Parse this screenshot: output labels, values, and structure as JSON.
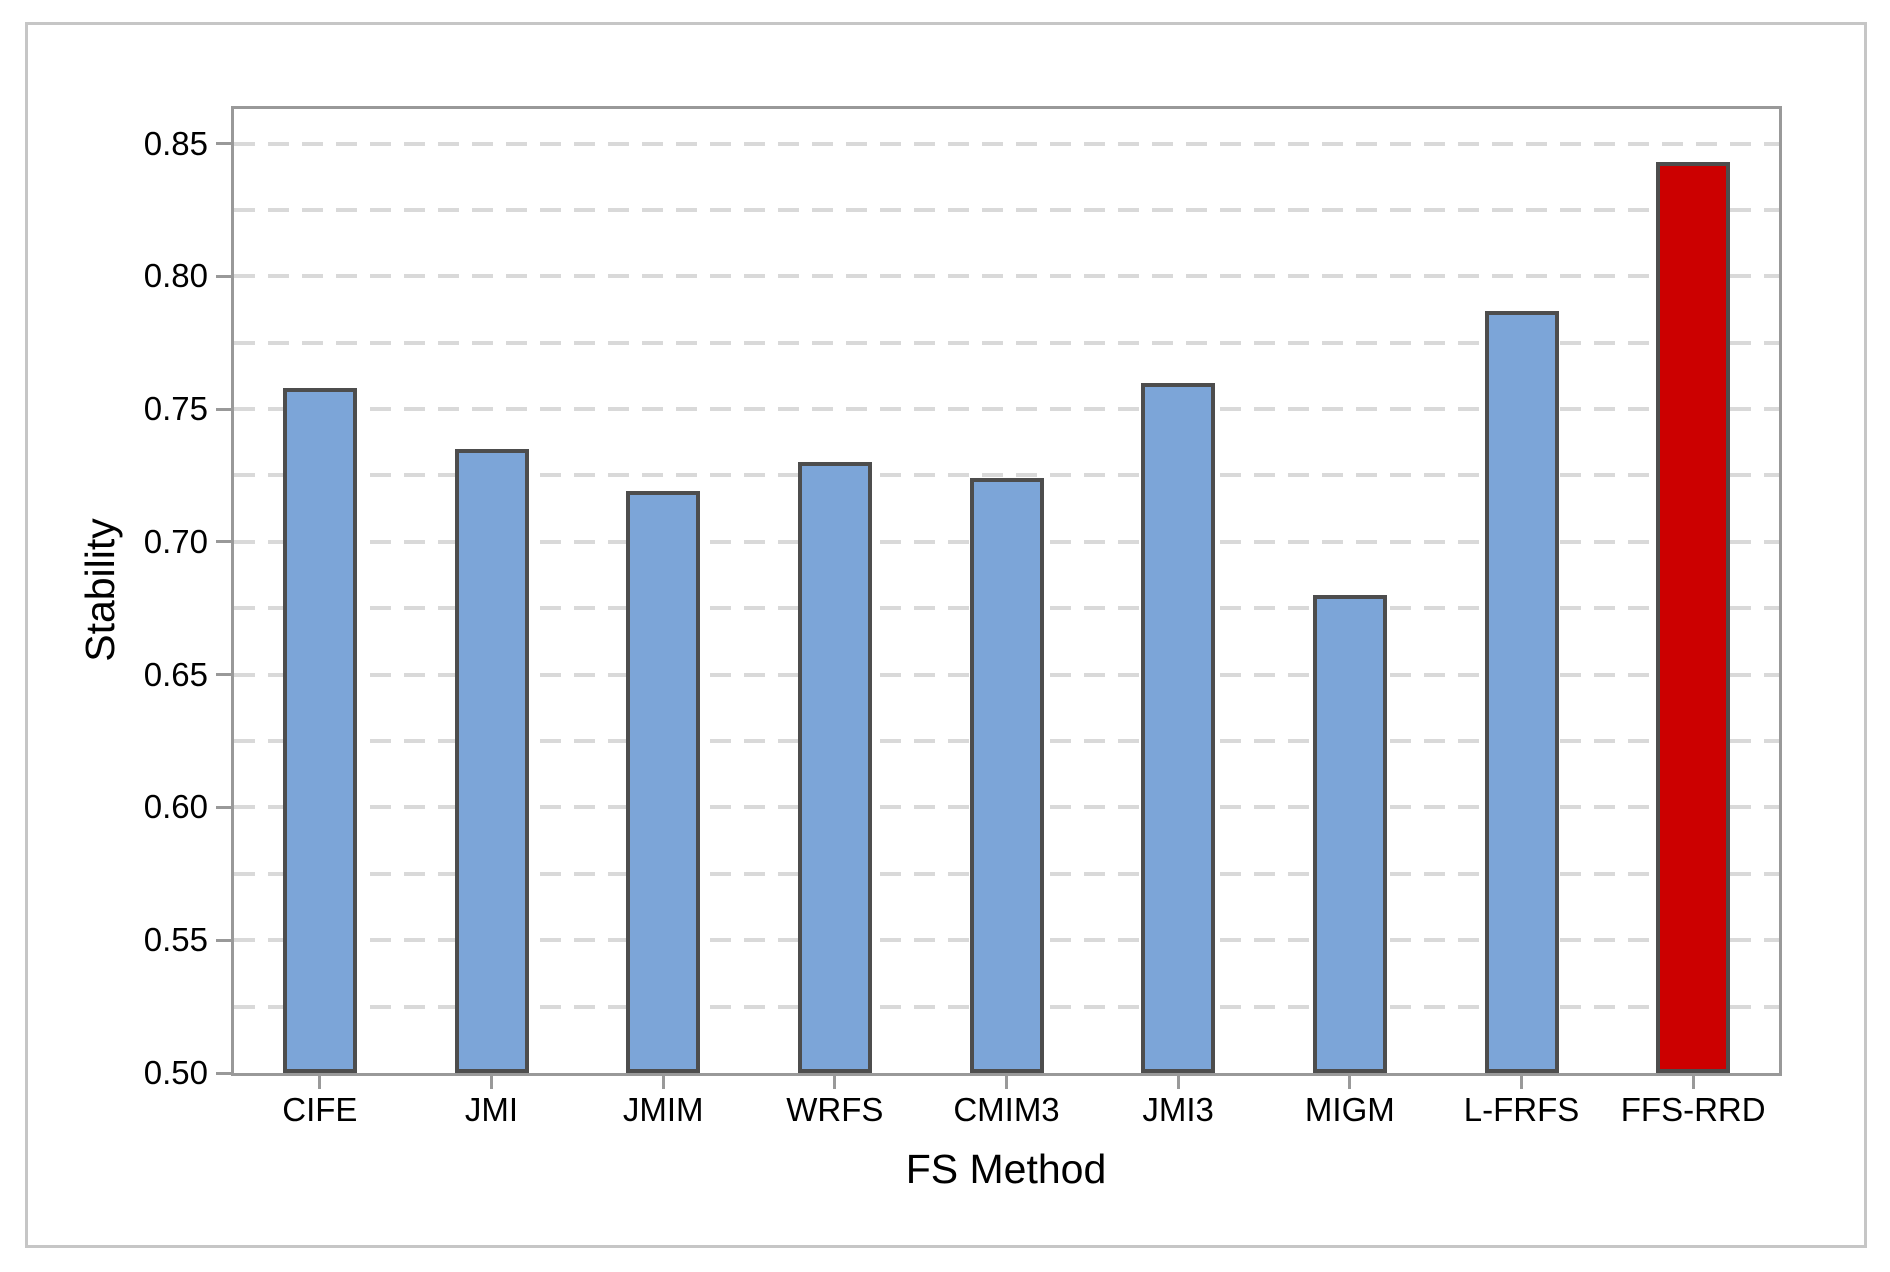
{
  "figure": {
    "background_color": "#ffffff",
    "frame_color": "#c6c6c6"
  },
  "chart_data": {
    "type": "bar",
    "title": "",
    "xlabel": "FS Method",
    "ylabel": "Stability",
    "categories": [
      "CIFE",
      "JMI",
      "JMIM",
      "WRFS",
      "CMIM3",
      "JMI3",
      "MIGM",
      "L-FRFS",
      "FFS-RRD"
    ],
    "values": [
      0.758,
      0.735,
      0.719,
      0.73,
      0.724,
      0.76,
      0.68,
      0.787,
      0.843
    ],
    "bar_color": "#7ca5d8",
    "highlight_index": 8,
    "highlight_color": "#cc0000",
    "bar_border_color": "#4d4d4d",
    "ylim": [
      0.5,
      0.863
    ],
    "yticks": [
      0.5,
      0.55,
      0.6,
      0.65,
      0.7,
      0.75,
      0.8,
      0.85
    ],
    "ytick_labels": [
      "0.50",
      "0.55",
      "0.60",
      "0.65",
      "0.70",
      "0.75",
      "0.80",
      "0.85"
    ],
    "grid_step": 0.025,
    "grid_style": "dashed horizontal",
    "gridline_color": "#d9d9d9",
    "axis_color": "#999999",
    "legend": "none"
  }
}
